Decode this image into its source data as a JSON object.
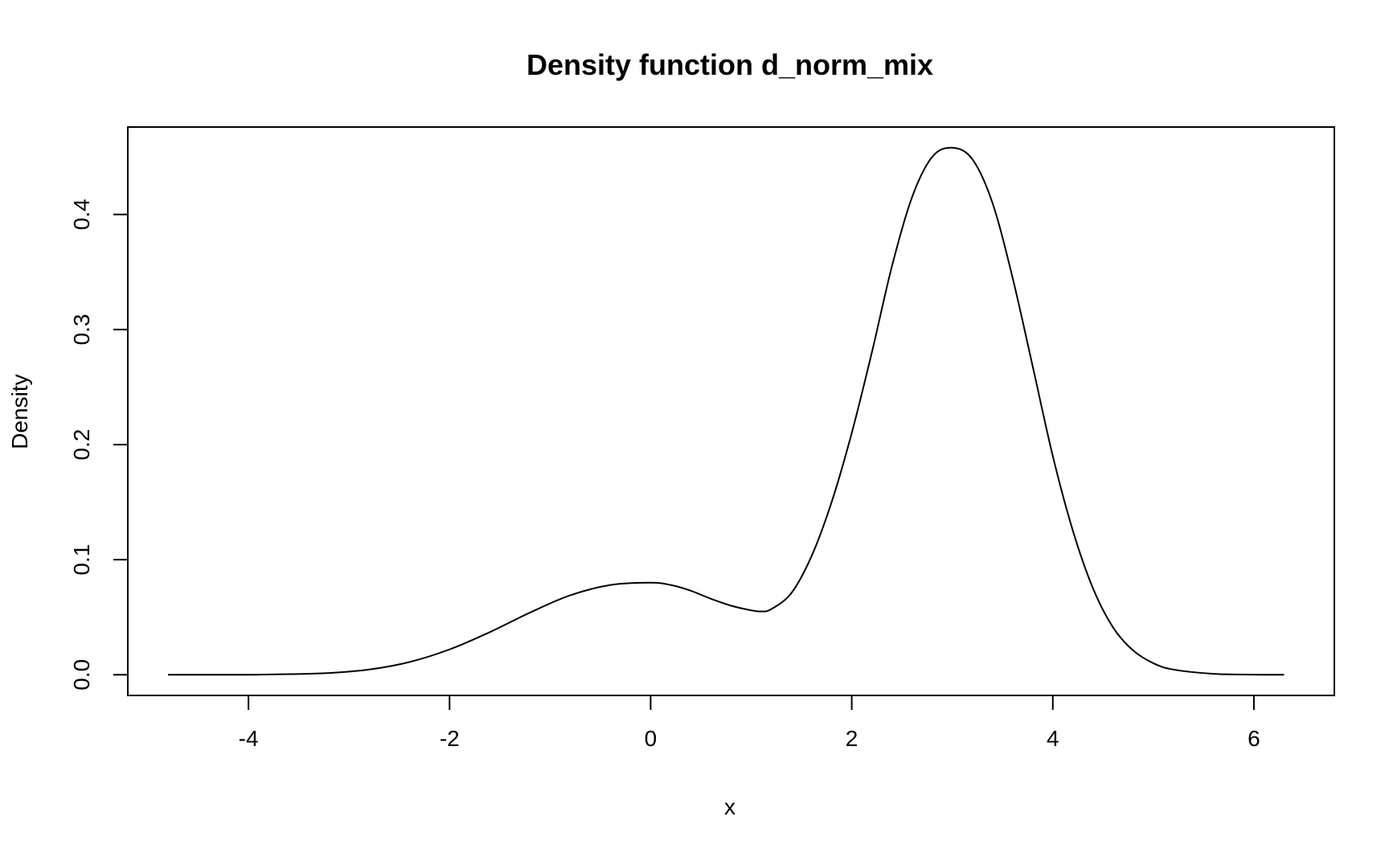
{
  "chart_data": {
    "type": "line",
    "title": "Density function d_norm_mix",
    "xlabel": "x",
    "ylabel": "Density",
    "xlim": [
      -5.2,
      6.8
    ],
    "ylim": [
      -0.018,
      0.476
    ],
    "x_ticks": [
      {
        "value": -4,
        "label": "-4"
      },
      {
        "value": -2,
        "label": "-2"
      },
      {
        "value": 0,
        "label": "0"
      },
      {
        "value": 2,
        "label": "2"
      },
      {
        "value": 4,
        "label": "4"
      },
      {
        "value": 6,
        "label": "6"
      }
    ],
    "y_ticks": [
      {
        "value": 0.0,
        "label": "0.0"
      },
      {
        "value": 0.1,
        "label": "0.1"
      },
      {
        "value": 0.2,
        "label": "0.2"
      },
      {
        "value": 0.3,
        "label": "0.3"
      },
      {
        "value": 0.4,
        "label": "0.4"
      }
    ],
    "grid": false,
    "line_color": "#000000",
    "series": [
      {
        "x": [
          -4.8,
          -4.4,
          -4.0,
          -3.6,
          -3.2,
          -2.8,
          -2.4,
          -2.0,
          -1.6,
          -1.2,
          -0.8,
          -0.4,
          0.0,
          0.2,
          0.4,
          0.6,
          0.8,
          1.0,
          1.1,
          1.2,
          1.4,
          1.6,
          1.8,
          2.0,
          2.2,
          2.4,
          2.6,
          2.8,
          3.0,
          3.2,
          3.4,
          3.6,
          3.8,
          4.0,
          4.2,
          4.4,
          4.6,
          4.8,
          5.0,
          5.2,
          5.6,
          6.0,
          6.3
        ],
        "y": [
          0.0,
          0.0,
          0.0,
          0.0005,
          0.0015,
          0.0045,
          0.011,
          0.022,
          0.037,
          0.054,
          0.069,
          0.078,
          0.08,
          0.078,
          0.073,
          0.066,
          0.06,
          0.056,
          0.055,
          0.057,
          0.071,
          0.103,
          0.15,
          0.21,
          0.28,
          0.355,
          0.415,
          0.45,
          0.458,
          0.448,
          0.41,
          0.345,
          0.268,
          0.19,
          0.125,
          0.075,
          0.041,
          0.021,
          0.01,
          0.0045,
          0.0008,
          0.0001,
          0.0
        ]
      }
    ]
  }
}
